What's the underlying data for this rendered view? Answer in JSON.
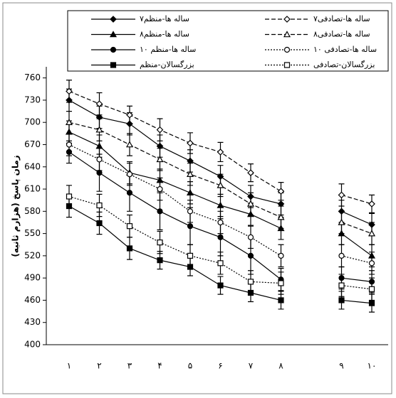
{
  "chart_data": {
    "type": "line",
    "y_label": "زمان پاسخ (هزارم ثانیه)",
    "categories": [
      "۱",
      "۲",
      "۳",
      "۴",
      "۵",
      "۶",
      "۷",
      "۸",
      null,
      "۹",
      "۱۰"
    ],
    "ylim": [
      400,
      775
    ],
    "yticks": [
      400,
      430,
      460,
      490,
      520,
      550,
      580,
      610,
      640,
      670,
      700,
      730,
      760
    ],
    "grid": false,
    "series": [
      {
        "name": "۷ساله ها-منظم",
        "color": "#000000",
        "dash": "solid",
        "marker": "diamond",
        "filled": true,
        "values": [
          730,
          707,
          698,
          668,
          648,
          627,
          600,
          590,
          null,
          580,
          562
        ],
        "errors": [
          15,
          15,
          15,
          15,
          15,
          15,
          15,
          15,
          null,
          15,
          15
        ]
      },
      {
        "name": "۷ساله ها-تصادفی",
        "color": "#000000",
        "dash": "dashed",
        "marker": "diamond",
        "filled": false,
        "values": [
          742,
          725,
          710,
          690,
          672,
          660,
          632,
          607,
          null,
          602,
          590
        ],
        "errors": [
          15,
          15,
          12,
          15,
          14,
          13,
          12,
          12,
          null,
          15,
          12
        ]
      },
      {
        "name": "۸ساله ها-منظم",
        "color": "#000000",
        "dash": "solid",
        "marker": "triangle",
        "filled": true,
        "values": [
          687,
          668,
          632,
          622,
          605,
          588,
          576,
          557,
          null,
          550,
          520
        ],
        "errors": [
          15,
          15,
          15,
          15,
          15,
          15,
          15,
          15,
          null,
          15,
          15
        ]
      },
      {
        "name": "۸ساله ها-تصادفی",
        "color": "#000000",
        "dash": "dashed",
        "marker": "triangle",
        "filled": false,
        "values": [
          700,
          690,
          670,
          650,
          630,
          615,
          590,
          572,
          null,
          565,
          550
        ],
        "errors": [
          15,
          15,
          15,
          15,
          15,
          15,
          15,
          15,
          null,
          15,
          15
        ]
      },
      {
        "name": "۱۰ ساله ها-منظم",
        "color": "#000000",
        "dash": "solid",
        "marker": "circle",
        "filled": true,
        "values": [
          660,
          632,
          605,
          580,
          560,
          545,
          520,
          488,
          null,
          490,
          485
        ],
        "errors": [
          15,
          25,
          25,
          25,
          25,
          25,
          25,
          15,
          null,
          15,
          15
        ]
      },
      {
        "name": "۱۰ ساله ها-تصادفی",
        "color": "#000000",
        "dash": "dotted",
        "marker": "circle",
        "filled": false,
        "values": [
          670,
          650,
          630,
          610,
          580,
          565,
          545,
          520,
          null,
          520,
          510
        ],
        "errors": [
          15,
          15,
          15,
          15,
          15,
          15,
          15,
          15,
          null,
          15,
          15
        ]
      },
      {
        "name": "بزرگسالان-منظم",
        "color": "#000000",
        "dash": "solid",
        "marker": "square",
        "filled": true,
        "values": [
          587,
          564,
          530,
          514,
          505,
          480,
          470,
          460,
          null,
          460,
          456
        ],
        "errors": [
          15,
          15,
          15,
          12,
          12,
          12,
          12,
          12,
          null,
          12,
          12
        ]
      },
      {
        "name": "بزرگسالان-تصادفی",
        "color": "#000000",
        "dash": "dotted",
        "marker": "square",
        "filled": false,
        "values": [
          600,
          588,
          560,
          538,
          520,
          510,
          485,
          483,
          null,
          480,
          475
        ],
        "errors": [
          15,
          15,
          15,
          15,
          15,
          15,
          15,
          15,
          null,
          15,
          15
        ]
      }
    ]
  }
}
